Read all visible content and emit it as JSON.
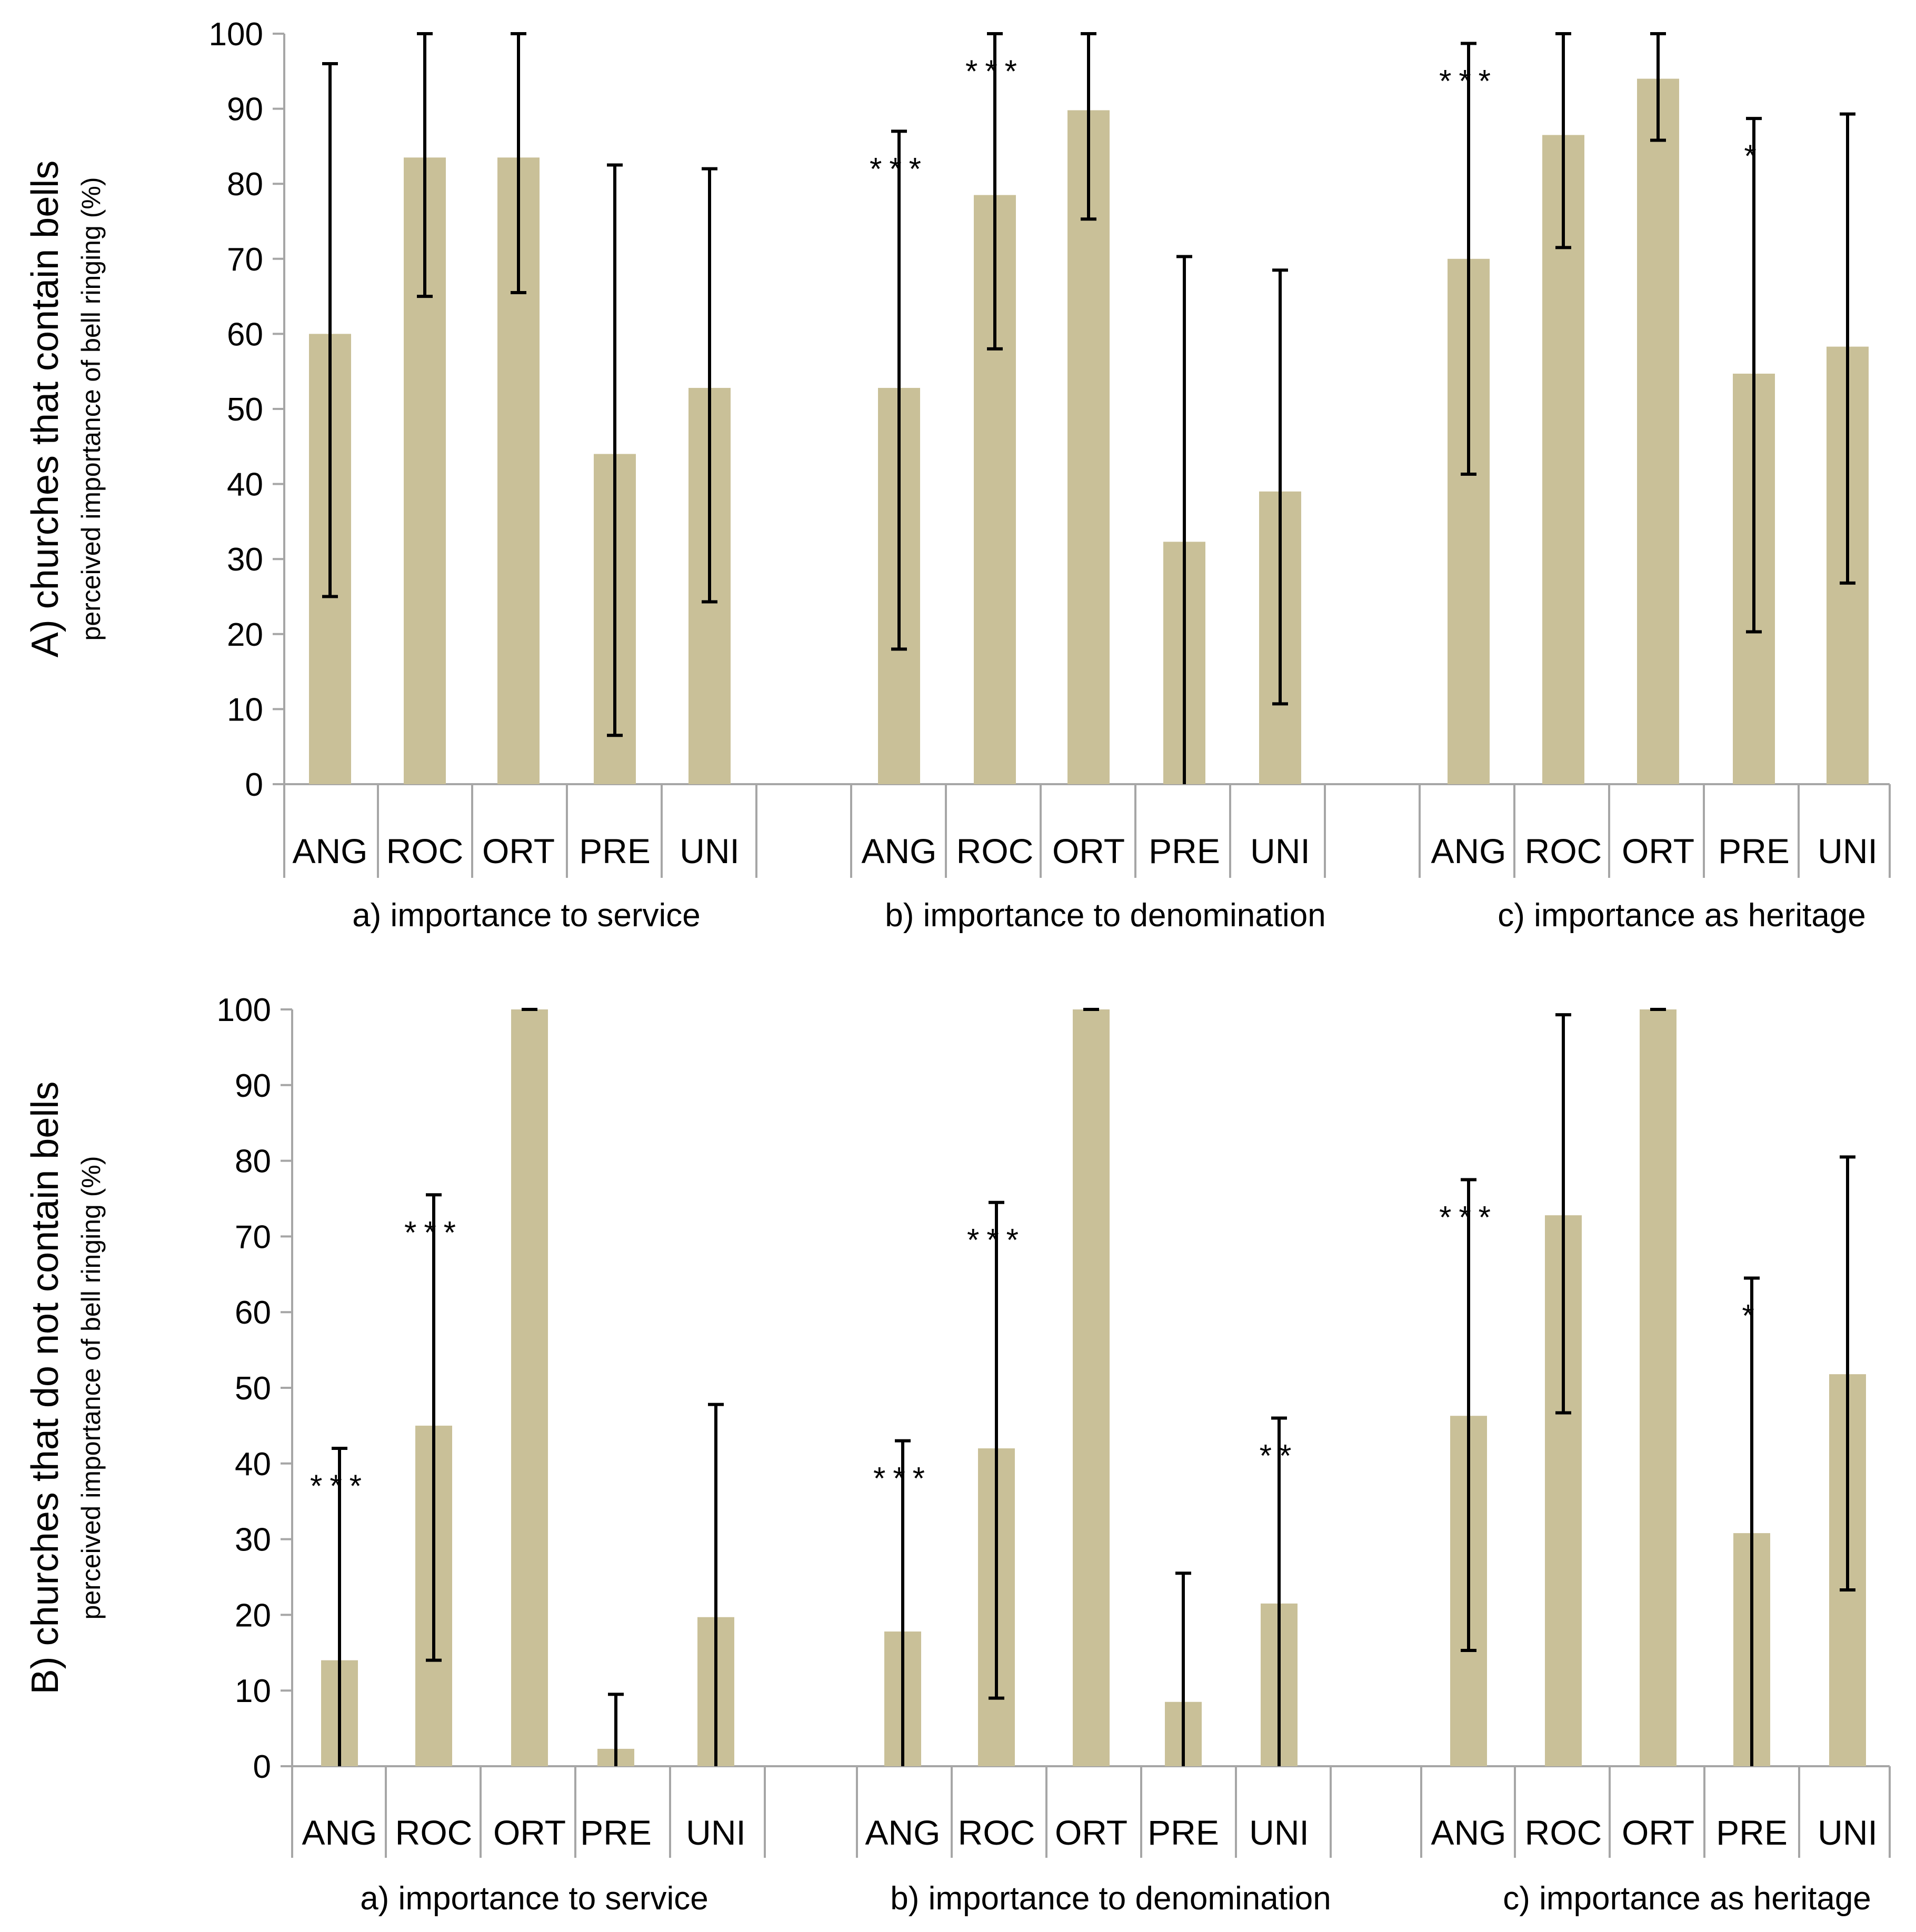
{
  "chart_data": [
    {
      "type": "bar",
      "panel": "A",
      "ylabel_main": "A) churches that contain bells",
      "ylabel_sub": "perceived importance of bell ringing (%)",
      "ylim": [
        0,
        100
      ],
      "yticks": [
        "0",
        "10",
        "20",
        "30",
        "40",
        "50",
        "60",
        "70",
        "80",
        "90",
        "100"
      ],
      "categories": [
        "ANG",
        "ROC",
        "ORT",
        "PRE",
        "UNI"
      ],
      "groups": [
        {
          "label": "a) importance to service",
          "bars": [
            {
              "cat": "ANG",
              "value": 60,
              "err_low": 25,
              "err_high": 96,
              "sig": ""
            },
            {
              "cat": "ROC",
              "value": 83.5,
              "err_low": 65,
              "err_high": 100,
              "sig": ""
            },
            {
              "cat": "ORT",
              "value": 83.5,
              "err_low": 65.5,
              "err_high": 100,
              "sig": ""
            },
            {
              "cat": "PRE",
              "value": 44,
              "err_low": 6.5,
              "err_high": 82.5,
              "sig": ""
            },
            {
              "cat": "UNI",
              "value": 52.8,
              "err_low": 24.3,
              "err_high": 82,
              "sig": ""
            }
          ]
        },
        {
          "label": "b) importance to denomination",
          "bars": [
            {
              "cat": "ANG",
              "value": 52.8,
              "err_low": 18,
              "err_high": 87,
              "sig": "***"
            },
            {
              "cat": "ROC",
              "value": 78.5,
              "err_low": 58,
              "err_high": 100,
              "sig": "***"
            },
            {
              "cat": "ORT",
              "value": 89.8,
              "err_low": 75.3,
              "err_high": 100,
              "sig": ""
            },
            {
              "cat": "PRE",
              "value": 32.3,
              "err_low": 0,
              "err_high": 70.3,
              "sig": ""
            },
            {
              "cat": "UNI",
              "value": 39,
              "err_low": 10.7,
              "err_high": 68.5,
              "sig": ""
            }
          ]
        },
        {
          "label": "c) importance as heritage",
          "bars": [
            {
              "cat": "ANG",
              "value": 70,
              "err_low": 41.3,
              "err_high": 98.7,
              "sig": "***"
            },
            {
              "cat": "ROC",
              "value": 86.5,
              "err_low": 71.5,
              "err_high": 100,
              "sig": ""
            },
            {
              "cat": "ORT",
              "value": 94,
              "err_low": 85.8,
              "err_high": 100,
              "sig": ""
            },
            {
              "cat": "PRE",
              "value": 54.7,
              "err_low": 20.3,
              "err_high": 88.7,
              "sig": "*"
            },
            {
              "cat": "UNI",
              "value": 58.3,
              "err_low": 26.8,
              "err_high": 89.3,
              "sig": ""
            }
          ]
        }
      ]
    },
    {
      "type": "bar",
      "panel": "B",
      "ylabel_main": "B) churches that do not contain bells",
      "ylabel_sub": "perceived importance of bell ringing (%)",
      "ylim": [
        0,
        100
      ],
      "yticks": [
        "0",
        "10",
        "20",
        "30",
        "40",
        "50",
        "60",
        "70",
        "80",
        "90",
        "100"
      ],
      "categories": [
        "ANG",
        "ROC",
        "ORT",
        "PRE",
        "UNI"
      ],
      "groups": [
        {
          "label": "a) importance to service",
          "bars": [
            {
              "cat": "ANG",
              "value": 14,
              "err_low": 0,
              "err_high": 42,
              "sig": "***"
            },
            {
              "cat": "ROC",
              "value": 45,
              "err_low": 14,
              "err_high": 75.5,
              "sig": "***"
            },
            {
              "cat": "ORT",
              "value": 100,
              "err_low": 100,
              "err_high": 100,
              "sig": ""
            },
            {
              "cat": "PRE",
              "value": 2.3,
              "err_low": 0,
              "err_high": 9.5,
              "sig": ""
            },
            {
              "cat": "UNI",
              "value": 19.7,
              "err_low": 0,
              "err_high": 47.8,
              "sig": ""
            }
          ]
        },
        {
          "label": "b) importance to denomination",
          "bars": [
            {
              "cat": "ANG",
              "value": 17.8,
              "err_low": 0,
              "err_high": 43,
              "sig": "***"
            },
            {
              "cat": "ROC",
              "value": 42,
              "err_low": 9,
              "err_high": 74.5,
              "sig": "***"
            },
            {
              "cat": "ORT",
              "value": 100,
              "err_low": 100,
              "err_high": 100,
              "sig": ""
            },
            {
              "cat": "PRE",
              "value": 8.5,
              "err_low": 0,
              "err_high": 25.5,
              "sig": ""
            },
            {
              "cat": "UNI",
              "value": 21.5,
              "err_low": 0,
              "err_high": 46,
              "sig": "**"
            }
          ]
        },
        {
          "label": "c) importance as heritage",
          "bars": [
            {
              "cat": "ANG",
              "value": 46.3,
              "err_low": 15.3,
              "err_high": 77.5,
              "sig": "***"
            },
            {
              "cat": "ROC",
              "value": 72.8,
              "err_low": 46.7,
              "err_high": 99.3,
              "sig": ""
            },
            {
              "cat": "ORT",
              "value": 100,
              "err_low": 100,
              "err_high": 100,
              "sig": ""
            },
            {
              "cat": "PRE",
              "value": 30.8,
              "err_low": 0,
              "err_high": 64.5,
              "sig": "*"
            },
            {
              "cat": "UNI",
              "value": 51.8,
              "err_low": 23.3,
              "err_high": 80.5,
              "sig": ""
            }
          ]
        }
      ]
    }
  ],
  "colors": {
    "bar": "#c9c098",
    "axis": "#a6a6a6",
    "error": "#000000"
  }
}
